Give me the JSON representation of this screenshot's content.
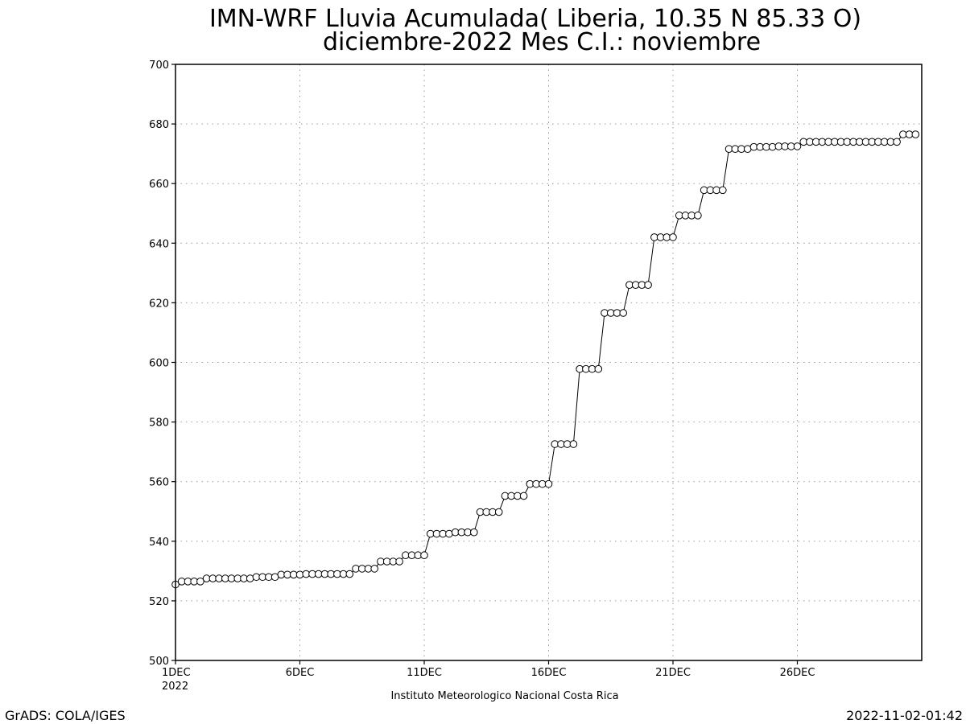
{
  "chart_data": {
    "type": "line",
    "title": "IMN-WRF  Lluvia Acumulada( Liberia, 10.35  N 85.33  O)",
    "subtitle": "diciembre-2022 Mes C.I.: noviembre",
    "xlabel": "",
    "ylabel": "",
    "ylim": [
      500,
      700
    ],
    "yticks": [
      500,
      520,
      540,
      560,
      580,
      600,
      620,
      640,
      660,
      680,
      700
    ],
    "xlim": [
      0,
      30
    ],
    "xticks": [
      {
        "day": 0,
        "label": "1DEC",
        "sublabel": "2022"
      },
      {
        "day": 5,
        "label": "6DEC"
      },
      {
        "day": 10,
        "label": "11DEC"
      },
      {
        "day": 15,
        "label": "16DEC"
      },
      {
        "day": 20,
        "label": "21DEC"
      },
      {
        "day": 25,
        "label": "26DEC"
      }
    ],
    "grid": true,
    "marker": "open-circle",
    "steps_per_day": 4,
    "values": [
      525.5,
      526.5,
      526.5,
      526.5,
      526.5,
      527.5,
      527.5,
      527.5,
      527.5,
      527.5,
      527.5,
      527.5,
      527.5,
      528,
      528,
      528,
      528,
      528.8,
      528.8,
      528.8,
      528.8,
      529,
      529,
      529,
      529,
      529,
      529,
      529,
      529,
      530.8,
      530.8,
      530.8,
      530.8,
      533.2,
      533.2,
      533.2,
      533.2,
      535.3,
      535.3,
      535.3,
      535.3,
      542.5,
      542.5,
      542.5,
      542.5,
      543,
      543,
      543,
      543,
      549.8,
      549.8,
      549.8,
      549.8,
      555.2,
      555.2,
      555.2,
      555.2,
      559.2,
      559.2,
      559.2,
      559.2,
      572.6,
      572.6,
      572.6,
      572.6,
      597.8,
      597.8,
      597.8,
      597.8,
      616.6,
      616.6,
      616.6,
      616.6,
      626,
      626,
      626,
      626,
      642,
      642,
      642,
      642,
      649.3,
      649.3,
      649.3,
      649.3,
      657.8,
      657.8,
      657.8,
      657.8,
      671.6,
      671.6,
      671.6,
      671.6,
      672.3,
      672.3,
      672.3,
      672.3,
      672.5,
      672.5,
      672.5,
      672.5,
      674,
      674,
      674,
      674,
      674,
      674,
      674,
      674,
      674,
      674,
      674,
      674,
      674,
      674,
      674,
      674,
      676.5,
      676.5,
      676.5
    ]
  },
  "footer": {
    "institution": "Instituto Meteorologico Nacional Costa Rica",
    "credit": "GrADS: COLA/IGES",
    "timestamp": "2022-11-02-01:42"
  }
}
